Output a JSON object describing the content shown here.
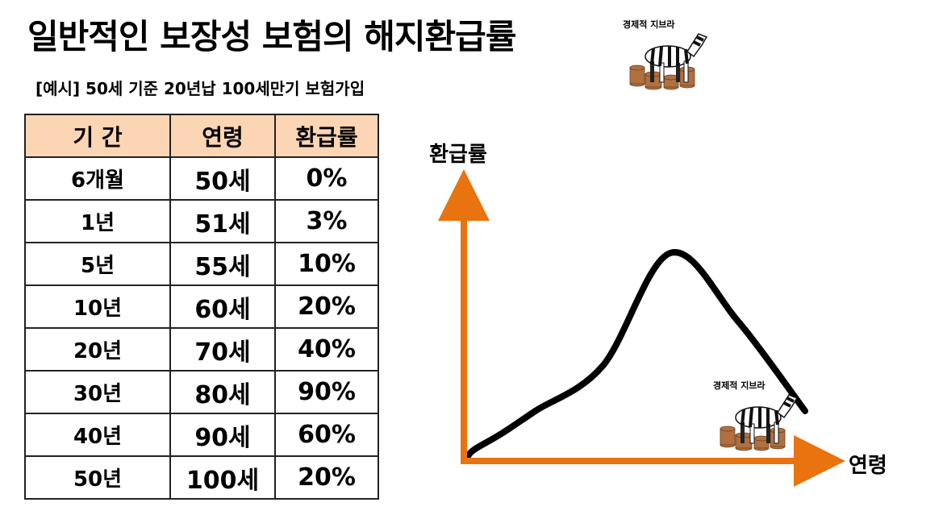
{
  "title": "일반적인 보장성 보험의 해지환급률",
  "subtitle": "[예시] 50세 기준 20년납 100세만기 보험가입",
  "logo_text": "경제적 지브라",
  "table": {
    "headers": [
      "기 간",
      "연령",
      "환급률"
    ],
    "rows": [
      [
        "6개월",
        "50세",
        "0%"
      ],
      [
        "1년",
        "51세",
        "3%"
      ],
      [
        "5년",
        "55세",
        "10%"
      ],
      [
        "10년",
        "60세",
        "20%"
      ],
      [
        "20년",
        "70세",
        "40%"
      ],
      [
        "30년",
        "80세",
        "90%"
      ],
      [
        "40년",
        "90세",
        "60%"
      ],
      [
        "50년",
        "100세",
        "20%"
      ]
    ]
  },
  "colors": {
    "header_fill": "#fcd5b4",
    "axis": "#e8730f",
    "curve": "#000000"
  },
  "chart_data": {
    "type": "line",
    "ylabel": "환급률",
    "xlabel": "연령",
    "grid": false,
    "x": [
      50,
      51,
      55,
      60,
      70,
      80,
      90,
      100
    ],
    "values": [
      0,
      3,
      10,
      20,
      40,
      90,
      60,
      20
    ],
    "ylim": [
      0,
      100
    ],
    "xlim": [
      50,
      100
    ]
  }
}
